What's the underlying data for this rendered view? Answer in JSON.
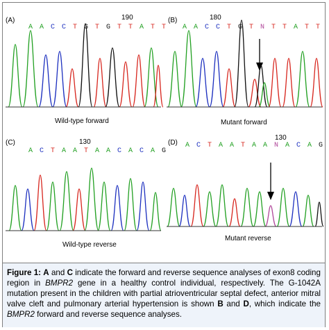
{
  "colors": {
    "A": "#22a022",
    "C": "#1c2fbf",
    "G": "#111111",
    "T": "#d7261e",
    "N": "#b0479a"
  },
  "panels": {
    "A": {
      "letter": "(A)",
      "position_number": "190",
      "bases": [
        "A",
        "A",
        "C",
        "C",
        "T",
        "G",
        "T",
        "G",
        "T",
        "T",
        "A",
        "T",
        "T"
      ],
      "caption": "Wild-type forward"
    },
    "B": {
      "letter": "(B)",
      "position_number": "180",
      "bases": [
        "A",
        "A",
        "C",
        "C",
        "T",
        "G",
        "T",
        "N",
        "T",
        "T",
        "A",
        "T",
        "T"
      ],
      "caption": "Mutant forward"
    },
    "C": {
      "letter": "(C)",
      "position_number": "130",
      "bases": [
        "A",
        "C",
        "T",
        "A",
        "A",
        "T",
        "A",
        "A",
        "C",
        "A",
        "C",
        "A",
        "G"
      ],
      "caption": "Wild-type reverse"
    },
    "D": {
      "letter": "(D)",
      "position_number": "130",
      "bases": [
        "A",
        "C",
        "T",
        "A",
        "A",
        "T",
        "A",
        "A",
        "N",
        "A",
        "C",
        "A",
        "G"
      ],
      "caption": "Mutant reverse"
    }
  },
  "caption": {
    "label": "Figure 1:",
    "A": "A",
    "and1": " and ",
    "C": "C",
    "text1": " indicate the forward and reverse sequence analyses of exon8 coding region in ",
    "gene1": "BMPR2",
    "text2": " gene in a healthy control individual, respectively. The G-1042A mutation present in the children with partial atrioventricular septal defect, anterior mitral valve cleft and pulmonary arterial hypertension is shown ",
    "B": "B",
    "and2": " and ",
    "D": "D",
    "text3": ", which indicate the ",
    "gene2": "BMPR2",
    "text4": " forward and reverse sequence analyses."
  }
}
